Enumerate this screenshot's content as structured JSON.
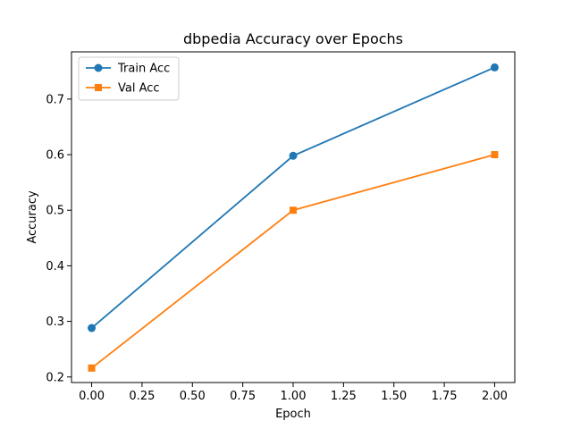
{
  "chart_data": {
    "type": "line",
    "title": "dbpedia Accuracy over Epochs",
    "xlabel": "Epoch",
    "ylabel": "Accuracy",
    "x": [
      0,
      1,
      2
    ],
    "xlim": [
      -0.1,
      2.1
    ],
    "ylim": [
      0.19,
      0.785
    ],
    "xticks": [
      0.0,
      0.25,
      0.5,
      0.75,
      1.0,
      1.25,
      1.5,
      1.75,
      2.0
    ],
    "xtick_labels": [
      "0.00",
      "0.25",
      "0.50",
      "0.75",
      "1.00",
      "1.25",
      "1.50",
      "1.75",
      "2.00"
    ],
    "yticks": [
      0.2,
      0.3,
      0.4,
      0.5,
      0.6,
      0.7
    ],
    "ytick_labels": [
      "0.2",
      "0.3",
      "0.4",
      "0.5",
      "0.6",
      "0.7"
    ],
    "grid": false,
    "legend_position": "top-left",
    "series": [
      {
        "name": "Train Acc",
        "values": [
          0.288,
          0.598,
          0.757
        ],
        "color": "#1f77b4",
        "marker": "circle"
      },
      {
        "name": "Val Acc",
        "values": [
          0.216,
          0.5,
          0.6
        ],
        "color": "#ff7f0e",
        "marker": "square"
      }
    ]
  }
}
